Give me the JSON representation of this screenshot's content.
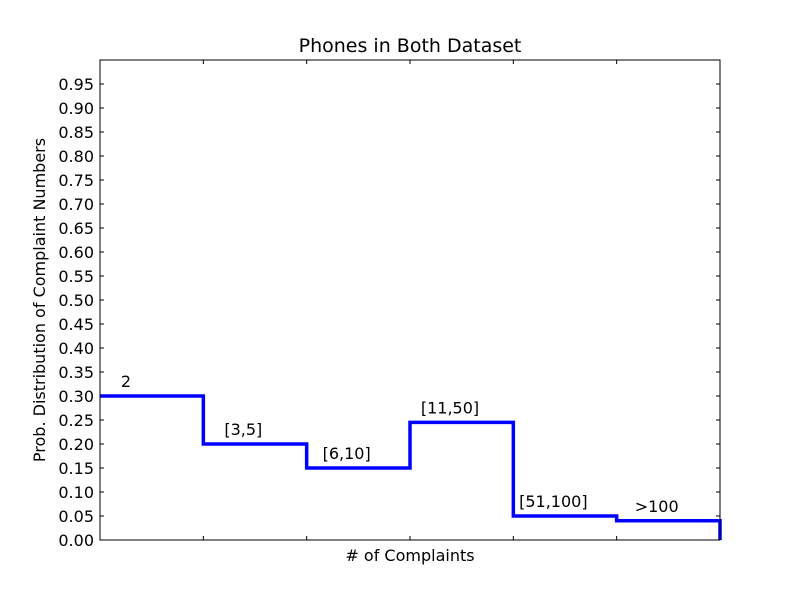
{
  "chart_data": {
    "type": "line",
    "title": "Phones in Both Dataset",
    "xlabel": "# of Complaints",
    "ylabel": "Prob. Distribution of Complaint Numbers",
    "categories": [
      "2",
      "[3,5]",
      "[6,10]",
      "[11,50]",
      "[51,100]",
      ">100"
    ],
    "values": [
      0.3,
      0.2,
      0.15,
      0.245,
      0.05,
      0.04
    ],
    "ylim": [
      0,
      1.0
    ],
    "yticks": [
      "0.00",
      "0.05",
      "0.10",
      "0.15",
      "0.20",
      "0.25",
      "0.30",
      "0.35",
      "0.40",
      "0.45",
      "0.50",
      "0.55",
      "0.60",
      "0.65",
      "0.70",
      "0.75",
      "0.80",
      "0.85",
      "0.90",
      "0.95"
    ],
    "grid": false,
    "line_color": "#0000ff"
  }
}
